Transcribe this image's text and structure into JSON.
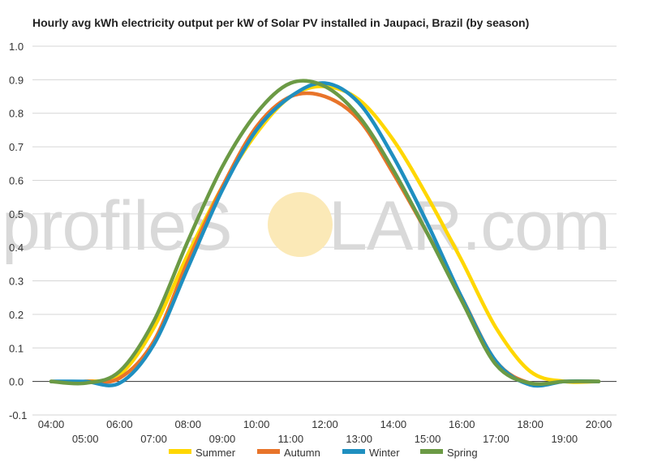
{
  "chart_data": {
    "type": "line",
    "title": "Hourly avg kWh electricity output per kW of Solar PV installed in Jaupaci, Brazil (by season)",
    "watermark": {
      "left": "profileS",
      "right": "LAR.com",
      "sun_color": "#fbe9b7"
    },
    "xlabel": "",
    "ylabel": "",
    "ylim": [
      -0.1,
      1.0
    ],
    "y_ticks": [
      "-0.1",
      "0.0",
      "0.1",
      "0.2",
      "0.3",
      "0.4",
      "0.5",
      "0.6",
      "0.7",
      "0.8",
      "0.9",
      "1.0"
    ],
    "y_tick_values": [
      -0.1,
      0.0,
      0.1,
      0.2,
      0.3,
      0.4,
      0.5,
      0.6,
      0.7,
      0.8,
      0.9,
      1.0
    ],
    "x": [
      "04:00",
      "05:00",
      "06:00",
      "07:00",
      "08:00",
      "09:00",
      "10:00",
      "11:00",
      "12:00",
      "13:00",
      "14:00",
      "15:00",
      "16:00",
      "17:00",
      "18:00",
      "19:00",
      "20:00"
    ],
    "grid": true,
    "legend_position": "bottom",
    "series": [
      {
        "name": "Summer",
        "color": "#ffd700",
        "values": [
          0.0,
          0.0,
          0.02,
          0.16,
          0.38,
          0.58,
          0.74,
          0.85,
          0.88,
          0.84,
          0.72,
          0.55,
          0.36,
          0.16,
          0.03,
          0.0,
          0.0
        ]
      },
      {
        "name": "Autumn",
        "color": "#e8742a",
        "values": [
          0.0,
          0.0,
          0.01,
          0.12,
          0.36,
          0.58,
          0.76,
          0.85,
          0.85,
          0.78,
          0.62,
          0.44,
          0.25,
          0.06,
          -0.005,
          0.0,
          0.0
        ]
      },
      {
        "name": "Winter",
        "color": "#1f8fc0",
        "values": [
          0.0,
          0.0,
          -0.005,
          0.11,
          0.34,
          0.57,
          0.75,
          0.85,
          0.89,
          0.83,
          0.67,
          0.47,
          0.25,
          0.06,
          -0.01,
          0.0,
          0.0
        ]
      },
      {
        "name": "Spring",
        "color": "#6b9a45",
        "values": [
          0.0,
          -0.005,
          0.03,
          0.18,
          0.42,
          0.64,
          0.8,
          0.89,
          0.88,
          0.79,
          0.63,
          0.44,
          0.24,
          0.05,
          -0.005,
          0.0,
          0.0
        ]
      }
    ]
  }
}
